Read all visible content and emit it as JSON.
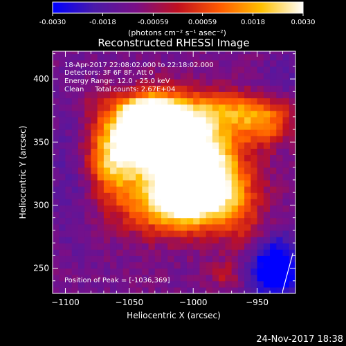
{
  "colorbar": {
    "colormap": "blue-purple-red-yellow-white",
    "stops": [
      "#0000ff",
      "#4a1aa8",
      "#7a0f86",
      "#c01020",
      "#ff5a00",
      "#ffc000",
      "#ffffff"
    ],
    "range": [
      -0.003,
      0.003
    ],
    "tick_labels": [
      "-0.0030",
      "-0.0018",
      "-0.00059",
      "0.00059",
      "0.0018",
      "0.0030"
    ],
    "unit_label": "(photons cm⁻² s⁻¹ asec⁻²)"
  },
  "chart_data": {
    "type": "heatmap",
    "title": "Reconstructed RHESSI Image",
    "xlabel": "Heliocentric X (arcsec)",
    "ylabel": "Heliocentric Y (arcsec)",
    "xlim": [
      -1110,
      -920
    ],
    "ylim": [
      230,
      422
    ],
    "x_ticks": [
      -1100,
      -1050,
      -1000,
      -950
    ],
    "y_ticks": [
      250,
      300,
      350,
      400
    ],
    "x_tick_labels": [
      "−1100",
      "−1050",
      "−1000",
      "−950"
    ],
    "y_tick_labels": [
      "250",
      "300",
      "350",
      "400"
    ],
    "peak_position": [
      -1036,
      369
    ],
    "emission_blobs": [
      {
        "x": -1036,
        "y": 369,
        "sx": 16,
        "sy": 12,
        "amp": 0.95
      },
      {
        "x": -1045,
        "y": 345,
        "sx": 24,
        "sy": 18,
        "amp": 0.55
      },
      {
        "x": -1015,
        "y": 355,
        "sx": 26,
        "sy": 22,
        "amp": 0.6
      },
      {
        "x": -995,
        "y": 330,
        "sx": 24,
        "sy": 26,
        "amp": 0.62
      },
      {
        "x": -1020,
        "y": 300,
        "sx": 26,
        "sy": 16,
        "amp": 0.55
      },
      {
        "x": -985,
        "y": 310,
        "sx": 22,
        "sy": 16,
        "amp": 0.45
      },
      {
        "x": -960,
        "y": 375,
        "sx": 30,
        "sy": 10,
        "amp": 0.4
      },
      {
        "x": -945,
        "y": 360,
        "sx": 14,
        "sy": 10,
        "amp": 0.3
      },
      {
        "x": -1065,
        "y": 330,
        "sx": 12,
        "sy": 22,
        "amp": 0.32
      },
      {
        "x": -960,
        "y": 280,
        "sx": 12,
        "sy": 14,
        "amp": 0.18
      },
      {
        "x": -975,
        "y": 245,
        "sx": 8,
        "sy": 8,
        "amp": 0.2
      },
      {
        "x": -1075,
        "y": 380,
        "sx": 10,
        "sy": 10,
        "amp": 0.12
      }
    ],
    "negative_blobs": [
      {
        "x": -935,
        "y": 250,
        "sx": 14,
        "sy": 16,
        "amp": 0.55
      },
      {
        "x": -1095,
        "y": 330,
        "sx": 14,
        "sy": 40,
        "amp": 0.12
      },
      {
        "x": -930,
        "y": 400,
        "sx": 10,
        "sy": 14,
        "amp": 0.12
      }
    ],
    "grid": false
  },
  "annotations": {
    "time_range": "18-Apr-2017 22:08:02.000 to 22:18:02.000",
    "detectors": "Detectors: 3F 6F 8F, Att 0",
    "energy": "Energy Range: 12.0 - 25.0 keV",
    "clean": "Clean     Total counts: 2.67E+04",
    "peak": "Position of Peak = [-1036,369]"
  },
  "footer": {
    "date": "24-Nov-2017 18:38"
  }
}
